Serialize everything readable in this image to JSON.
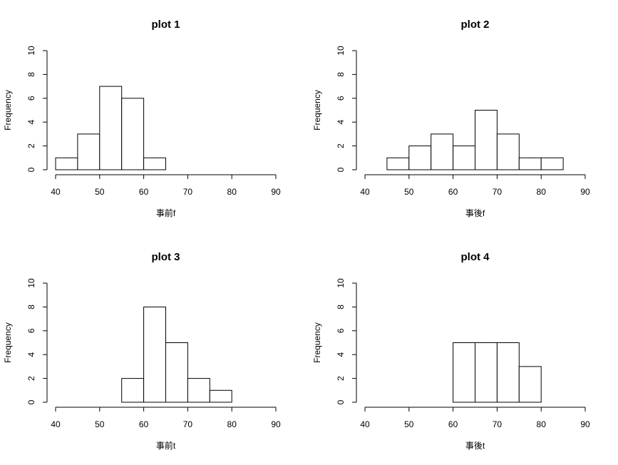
{
  "chart_data": [
    {
      "type": "histogram",
      "title": "plot 1",
      "xlabel": "事前f",
      "ylabel": "Frequency",
      "bins": [
        40,
        45,
        50,
        55,
        60,
        65,
        70,
        75,
        80,
        85,
        90
      ],
      "counts": [
        1,
        3,
        7,
        6,
        1,
        0,
        0,
        0,
        0,
        0
      ],
      "color": "#ffffff",
      "xlim": [
        40,
        90
      ],
      "ylim": [
        0,
        10
      ],
      "xticks": [
        40,
        50,
        60,
        70,
        80,
        90
      ],
      "yticks": [
        0,
        2,
        4,
        6,
        8,
        10
      ]
    },
    {
      "type": "histogram",
      "title": "plot 2",
      "xlabel": "事後f",
      "ylabel": "Frequency",
      "bins": [
        45,
        50,
        55,
        60,
        65,
        70,
        75,
        80,
        85
      ],
      "counts": [
        1,
        2,
        3,
        2,
        5,
        3,
        1,
        1
      ],
      "color": "#ffffff",
      "xlim": [
        40,
        90
      ],
      "ylim": [
        0,
        10
      ],
      "xticks": [
        40,
        50,
        60,
        70,
        80,
        90
      ],
      "yticks": [
        0,
        2,
        4,
        6,
        8,
        10
      ]
    },
    {
      "type": "histogram",
      "title": "plot 3",
      "xlabel": "事前t",
      "ylabel": "Frequency",
      "bins": [
        55,
        60,
        65,
        70,
        75,
        80
      ],
      "counts": [
        2,
        8,
        5,
        2,
        1
      ],
      "color": "#ffffff",
      "xlim": [
        40,
        90
      ],
      "ylim": [
        0,
        10
      ],
      "xticks": [
        40,
        50,
        60,
        70,
        80,
        90
      ],
      "yticks": [
        0,
        2,
        4,
        6,
        8,
        10
      ]
    },
    {
      "type": "histogram",
      "title": "plot 4",
      "xlabel": "事後t",
      "ylabel": "Frequency",
      "bins": [
        60,
        65,
        70,
        75,
        80
      ],
      "counts": [
        5,
        5,
        5,
        3
      ],
      "color": "#ffffff",
      "xlim": [
        40,
        90
      ],
      "ylim": [
        0,
        10
      ],
      "xticks": [
        40,
        50,
        60,
        70,
        80,
        90
      ],
      "yticks": [
        0,
        2,
        4,
        6,
        8,
        10
      ]
    }
  ]
}
